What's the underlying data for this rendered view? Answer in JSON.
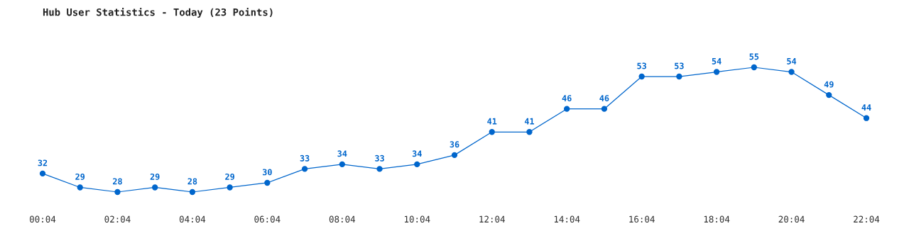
{
  "chart_data": {
    "type": "line",
    "title": "Hub User Statistics - Today (23 Points)",
    "categories": [
      "00:04",
      null,
      "02:04",
      null,
      "04:04",
      null,
      "06:04",
      null,
      "08:04",
      null,
      "10:04",
      null,
      "12:04",
      null,
      "14:04",
      null,
      "16:04",
      null,
      "18:04",
      null,
      "20:04",
      null,
      "22:04"
    ],
    "series": [
      {
        "color": "#0066cc",
        "values": [
          32,
          29,
          28,
          29,
          28,
          29,
          30,
          33,
          34,
          33,
          34,
          36,
          41,
          41,
          46,
          46,
          53,
          53,
          54,
          55,
          54,
          49,
          44
        ]
      }
    ],
    "data_labels": true,
    "marker": "circle",
    "line_style": "solid",
    "grid": false,
    "legend": false
  }
}
